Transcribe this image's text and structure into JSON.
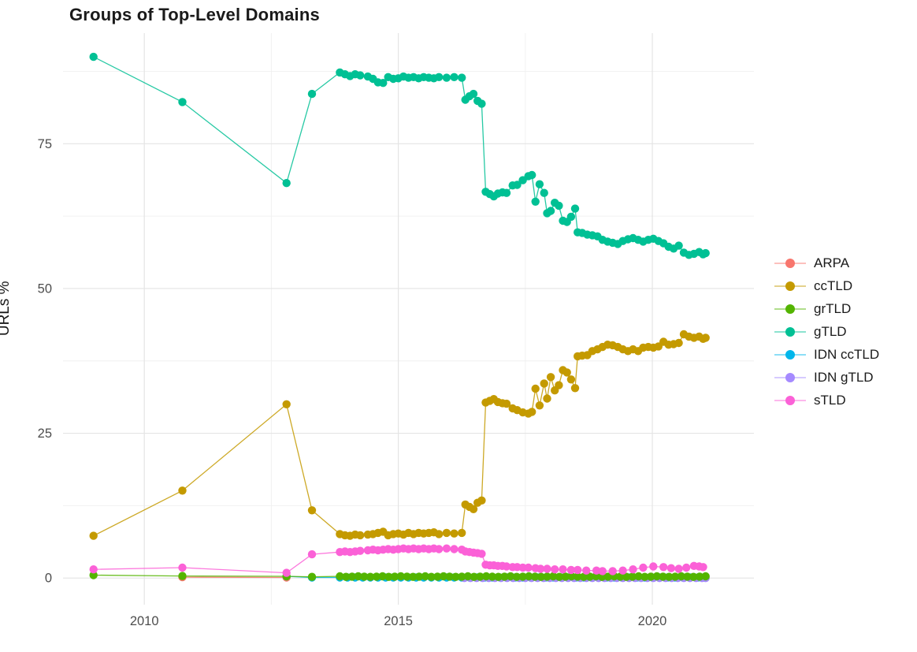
{
  "chart_data": {
    "type": "line",
    "title": "Groups of Top-Level Domains",
    "xlabel": "",
    "ylabel": "URLs %",
    "grid": true,
    "legend_position": "right",
    "xlim": [
      2008.4,
      2022.0
    ],
    "ylim": [
      -4.6,
      94.1
    ],
    "x_ticks": [
      2010,
      2015,
      2020
    ],
    "x_minor_ticks": [
      2012.5,
      2017.5
    ],
    "y_ticks": [
      0,
      25,
      50,
      75
    ],
    "y_minor_ticks": [
      12.5,
      37.5,
      62.5,
      87.5
    ],
    "series": [
      {
        "name": "ARPA",
        "color": "#F8766D",
        "z": 1,
        "x": [
          2010.75,
          2012.8
        ],
        "y": [
          0.15,
          0.1
        ]
      },
      {
        "name": "ccTLD",
        "color": "#C49A00",
        "z": 6,
        "x": [
          2009.0,
          2010.75,
          2012.8,
          2013.3,
          2013.85,
          2013.95,
          2014.05,
          2014.15,
          2014.25,
          2014.4,
          2014.5,
          2014.6,
          2014.7,
          2014.8,
          2014.9,
          2015.0,
          2015.1,
          2015.2,
          2015.3,
          2015.4,
          2015.5,
          2015.6,
          2015.7,
          2015.8,
          2015.95,
          2016.1,
          2016.25,
          2016.32,
          2016.4,
          2016.48,
          2016.56,
          2016.64,
          2016.72,
          2016.8,
          2016.88,
          2016.96,
          2017.05,
          2017.13,
          2017.25,
          2017.34,
          2017.45,
          2017.56,
          2017.63,
          2017.7,
          2017.78,
          2017.87,
          2017.93,
          2018.0,
          2018.08,
          2018.16,
          2018.24,
          2018.32,
          2018.4,
          2018.48,
          2018.53,
          2018.62,
          2018.72,
          2018.82,
          2018.92,
          2019.02,
          2019.12,
          2019.22,
          2019.32,
          2019.42,
          2019.52,
          2019.62,
          2019.72,
          2019.82,
          2019.92,
          2020.02,
          2020.12,
          2020.22,
          2020.32,
          2020.42,
          2020.52,
          2020.62,
          2020.72,
          2020.82,
          2020.92,
          2021.0,
          2021.05
        ],
        "y": [
          7.3,
          15.1,
          30.0,
          11.7,
          7.6,
          7.4,
          7.3,
          7.5,
          7.4,
          7.5,
          7.6,
          7.8,
          8.0,
          7.4,
          7.6,
          7.7,
          7.5,
          7.8,
          7.6,
          7.8,
          7.7,
          7.8,
          7.9,
          7.6,
          7.8,
          7.7,
          7.8,
          12.7,
          12.3,
          11.9,
          13.0,
          13.4,
          30.3,
          30.6,
          30.9,
          30.4,
          30.2,
          30.1,
          29.3,
          29.0,
          28.6,
          28.4,
          28.7,
          32.7,
          29.8,
          33.6,
          31.0,
          34.7,
          32.4,
          33.3,
          35.9,
          35.5,
          34.3,
          32.8,
          38.3,
          38.4,
          38.5,
          39.2,
          39.5,
          39.9,
          40.3,
          40.2,
          39.9,
          39.5,
          39.2,
          39.5,
          39.2,
          39.8,
          39.9,
          39.8,
          40.0,
          40.8,
          40.3,
          40.4,
          40.6,
          42.1,
          41.7,
          41.5,
          41.7,
          41.3,
          41.5
        ]
      },
      {
        "name": "grTLD",
        "color": "#53B400",
        "z": 4,
        "x": [
          2009.0,
          2010.75,
          2012.8,
          2013.3,
          2013.85,
          2013.97,
          2014.09,
          2014.21,
          2014.33,
          2014.45,
          2014.57,
          2014.69,
          2014.81,
          2014.93,
          2015.05,
          2015.17,
          2015.29,
          2015.41,
          2015.53,
          2015.65,
          2015.77,
          2015.89,
          2016.01,
          2016.13,
          2016.25,
          2016.37,
          2016.49,
          2016.61,
          2016.73,
          2016.85,
          2016.97,
          2017.09,
          2017.21,
          2017.33,
          2017.45,
          2017.57,
          2017.69,
          2017.81,
          2017.93,
          2018.05,
          2018.17,
          2018.29,
          2018.41,
          2018.53,
          2018.65,
          2018.77,
          2018.89,
          2019.01,
          2019.13,
          2019.25,
          2019.37,
          2019.49,
          2019.61,
          2019.73,
          2019.85,
          2019.97,
          2020.09,
          2020.21,
          2020.33,
          2020.45,
          2020.57,
          2020.69,
          2020.81,
          2020.93,
          2021.05
        ],
        "y": [
          0.5,
          0.35,
          0.3,
          0.2,
          0.3,
          0.2,
          0.25,
          0.3,
          0.25,
          0.2,
          0.25,
          0.3,
          0.2,
          0.25,
          0.3,
          0.25,
          0.2,
          0.25,
          0.3,
          0.2,
          0.25,
          0.3,
          0.25,
          0.2,
          0.25,
          0.3,
          0.2,
          0.25,
          0.3,
          0.25,
          0.2,
          0.25,
          0.3,
          0.2,
          0.25,
          0.3,
          0.25,
          0.2,
          0.25,
          0.3,
          0.2,
          0.25,
          0.3,
          0.25,
          0.2,
          0.25,
          0.3,
          0.2,
          0.25,
          0.3,
          0.25,
          0.2,
          0.25,
          0.3,
          0.2,
          0.25,
          0.3,
          0.25,
          0.2,
          0.25,
          0.3,
          0.25,
          0.2,
          0.25,
          0.3
        ]
      },
      {
        "name": "gTLD",
        "color": "#00C094",
        "z": 7,
        "x": [
          2009.0,
          2010.75,
          2012.8,
          2013.3,
          2013.85,
          2013.95,
          2014.05,
          2014.15,
          2014.25,
          2014.4,
          2014.5,
          2014.6,
          2014.7,
          2014.8,
          2014.9,
          2015.0,
          2015.1,
          2015.2,
          2015.3,
          2015.4,
          2015.5,
          2015.6,
          2015.7,
          2015.8,
          2015.95,
          2016.1,
          2016.25,
          2016.32,
          2016.4,
          2016.48,
          2016.56,
          2016.64,
          2016.72,
          2016.8,
          2016.88,
          2016.96,
          2017.05,
          2017.13,
          2017.25,
          2017.34,
          2017.45,
          2017.56,
          2017.63,
          2017.7,
          2017.78,
          2017.87,
          2017.93,
          2018.0,
          2018.08,
          2018.16,
          2018.24,
          2018.32,
          2018.4,
          2018.48,
          2018.53,
          2018.62,
          2018.72,
          2018.82,
          2018.92,
          2019.02,
          2019.12,
          2019.22,
          2019.32,
          2019.42,
          2019.52,
          2019.62,
          2019.72,
          2019.82,
          2019.92,
          2020.02,
          2020.12,
          2020.22,
          2020.32,
          2020.42,
          2020.52,
          2020.62,
          2020.72,
          2020.82,
          2020.92,
          2021.0,
          2021.05
        ],
        "y": [
          90.0,
          82.2,
          68.2,
          83.6,
          87.3,
          87.0,
          86.7,
          87.0,
          86.8,
          86.6,
          86.2,
          85.6,
          85.5,
          86.5,
          86.2,
          86.3,
          86.6,
          86.4,
          86.5,
          86.3,
          86.5,
          86.4,
          86.3,
          86.5,
          86.4,
          86.5,
          86.4,
          82.6,
          83.2,
          83.6,
          82.4,
          81.9,
          66.7,
          66.3,
          65.9,
          66.4,
          66.6,
          66.5,
          67.8,
          67.9,
          68.7,
          69.4,
          69.6,
          65.0,
          68.0,
          66.5,
          63.0,
          63.4,
          64.8,
          64.3,
          61.7,
          61.5,
          62.4,
          63.8,
          59.7,
          59.6,
          59.3,
          59.2,
          59.0,
          58.4,
          58.1,
          57.9,
          57.7,
          58.2,
          58.5,
          58.7,
          58.4,
          58.1,
          58.4,
          58.6,
          58.2,
          57.8,
          57.2,
          56.9,
          57.4,
          56.2,
          55.8,
          56.0,
          56.3,
          55.9,
          56.1
        ]
      },
      {
        "name": "IDN ccTLD",
        "color": "#00B6EB",
        "z": 2,
        "x": [
          2012.8,
          2013.3,
          2013.85,
          2014.0,
          2014.15,
          2014.3,
          2014.45,
          2014.6,
          2014.75,
          2014.9,
          2015.05,
          2015.2,
          2015.35,
          2015.5,
          2015.65,
          2015.8,
          2015.95,
          2016.1,
          2016.25,
          2016.4,
          2016.55,
          2016.7,
          2016.85,
          2017.0,
          2017.15,
          2017.3,
          2017.45,
          2017.6,
          2017.75,
          2017.9,
          2018.05,
          2018.2,
          2018.35,
          2018.5,
          2018.65,
          2018.8,
          2018.95,
          2019.1,
          2019.25,
          2019.4,
          2019.55,
          2019.7,
          2019.85,
          2020.0,
          2020.15,
          2020.3,
          2020.45,
          2020.6,
          2020.75,
          2020.9,
          2021.0
        ],
        "y": [
          0.3,
          0.1,
          0.1,
          0.1,
          0.1,
          0.1,
          0.1,
          0.1,
          0.1,
          0.1,
          0.1,
          0.1,
          0.1,
          0.1,
          0.1,
          0.1,
          0.1,
          0.1,
          0.1,
          0.1,
          0.1,
          0.1,
          0.1,
          0.1,
          0.1,
          0.1,
          0.1,
          0.1,
          0.1,
          0.1,
          0.1,
          0.1,
          0.1,
          0.1,
          0.1,
          0.1,
          0.1,
          0.1,
          0.1,
          0.1,
          0.1,
          0.1,
          0.1,
          0.1,
          0.1,
          0.1,
          0.1,
          0.1,
          0.1,
          0.1,
          0.1
        ]
      },
      {
        "name": "IDN gTLD",
        "color": "#A58AFF",
        "z": 3,
        "x": [
          2016.3,
          2016.42,
          2016.54,
          2016.66,
          2016.78,
          2016.9,
          2017.02,
          2017.14,
          2017.26,
          2017.38,
          2017.5,
          2017.62,
          2017.74,
          2017.86,
          2017.98,
          2018.1,
          2018.22,
          2018.34,
          2018.46,
          2018.58,
          2018.7,
          2018.82,
          2018.94,
          2019.06,
          2019.18,
          2019.3,
          2019.42,
          2019.54,
          2019.66,
          2019.78,
          2019.9,
          2020.02,
          2020.14,
          2020.26,
          2020.38,
          2020.5,
          2020.62,
          2020.74,
          2020.86,
          2020.98,
          2021.05
        ],
        "y": [
          0.0,
          0.0,
          0.0,
          0.0,
          0.0,
          0.0,
          0.0,
          0.0,
          0.0,
          0.0,
          0.0,
          0.0,
          0.0,
          0.0,
          0.0,
          0.0,
          0.0,
          0.0,
          0.0,
          0.0,
          0.0,
          0.0,
          0.0,
          0.0,
          0.0,
          0.0,
          0.0,
          0.0,
          0.0,
          0.0,
          0.0,
          0.0,
          0.0,
          0.0,
          0.0,
          0.0,
          0.0,
          0.0,
          0.0,
          0.0,
          0.0
        ]
      },
      {
        "name": "sTLD",
        "color": "#FB61D7",
        "z": 5,
        "x": [
          2009.0,
          2010.75,
          2012.8,
          2013.3,
          2013.85,
          2013.95,
          2014.05,
          2014.15,
          2014.25,
          2014.4,
          2014.5,
          2014.6,
          2014.7,
          2014.8,
          2014.9,
          2015.0,
          2015.1,
          2015.2,
          2015.3,
          2015.4,
          2015.5,
          2015.6,
          2015.7,
          2015.8,
          2015.95,
          2016.1,
          2016.25,
          2016.32,
          2016.4,
          2016.48,
          2016.56,
          2016.64,
          2016.72,
          2016.8,
          2016.88,
          2016.96,
          2017.05,
          2017.13,
          2017.25,
          2017.34,
          2017.45,
          2017.56,
          2017.7,
          2017.8,
          2017.93,
          2018.08,
          2018.24,
          2018.4,
          2018.53,
          2018.7,
          2018.9,
          2019.02,
          2019.22,
          2019.42,
          2019.62,
          2019.82,
          2020.02,
          2020.22,
          2020.37,
          2020.52,
          2020.67,
          2020.82,
          2020.92,
          2021.0
        ],
        "y": [
          1.5,
          1.8,
          0.9,
          4.1,
          4.5,
          4.6,
          4.5,
          4.6,
          4.7,
          4.8,
          4.9,
          4.8,
          4.9,
          5.0,
          4.9,
          5.0,
          5.1,
          5.0,
          5.1,
          5.0,
          5.1,
          5.0,
          5.1,
          5.0,
          5.1,
          5.0,
          4.9,
          4.6,
          4.5,
          4.4,
          4.3,
          4.2,
          2.3,
          2.2,
          2.2,
          2.1,
          2.1,
          2.0,
          1.9,
          1.9,
          1.8,
          1.8,
          1.7,
          1.6,
          1.6,
          1.5,
          1.5,
          1.4,
          1.4,
          1.3,
          1.3,
          1.2,
          1.2,
          1.3,
          1.5,
          1.8,
          2.0,
          1.9,
          1.7,
          1.6,
          1.8,
          2.1,
          2.0,
          1.9
        ]
      }
    ],
    "style": {
      "major_grid_color": "#E4E4E4",
      "minor_grid_color": "#F0F0F0",
      "tick_label_color": "#4d4d4d",
      "text_color": "#1a1a1a",
      "background": "#ffffff"
    }
  }
}
